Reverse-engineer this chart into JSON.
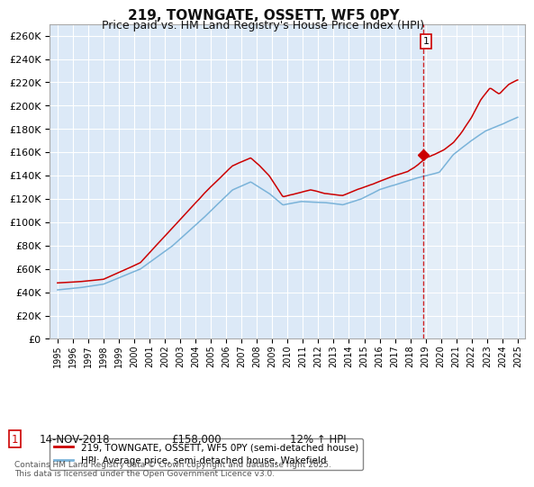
{
  "title": "219, TOWNGATE, OSSETT, WF5 0PY",
  "subtitle": "Price paid vs. HM Land Registry's House Price Index (HPI)",
  "title_fontsize": 11,
  "subtitle_fontsize": 9,
  "background_color": "#ffffff",
  "plot_bg_color": "#dce9f7",
  "plot_bg_color_right": "#e4eef8",
  "grid_color": "#ffffff",
  "red_line_color": "#cc0000",
  "blue_line_color": "#7ab3d9",
  "vline_color": "#cc0000",
  "marker_color": "#cc0000",
  "ylim": [
    0,
    270000
  ],
  "ytick_step": 20000,
  "year_start": 1995,
  "year_end": 2025,
  "sale_date_label": "14-NOV-2018",
  "sale_price_label": "£158,000",
  "sale_hpi_label": "12% ↑ HPI",
  "sale_year": 2018.87,
  "sale_price": 158000,
  "annotation_number": "1",
  "legend_red": "219, TOWNGATE, OSSETT, WF5 0PY (semi-detached house)",
  "legend_blue": "HPI: Average price, semi-detached house, Wakefield",
  "footer": "Contains HM Land Registry data © Crown copyright and database right 2025.\nThis data is licensed under the Open Government Licence v3.0."
}
